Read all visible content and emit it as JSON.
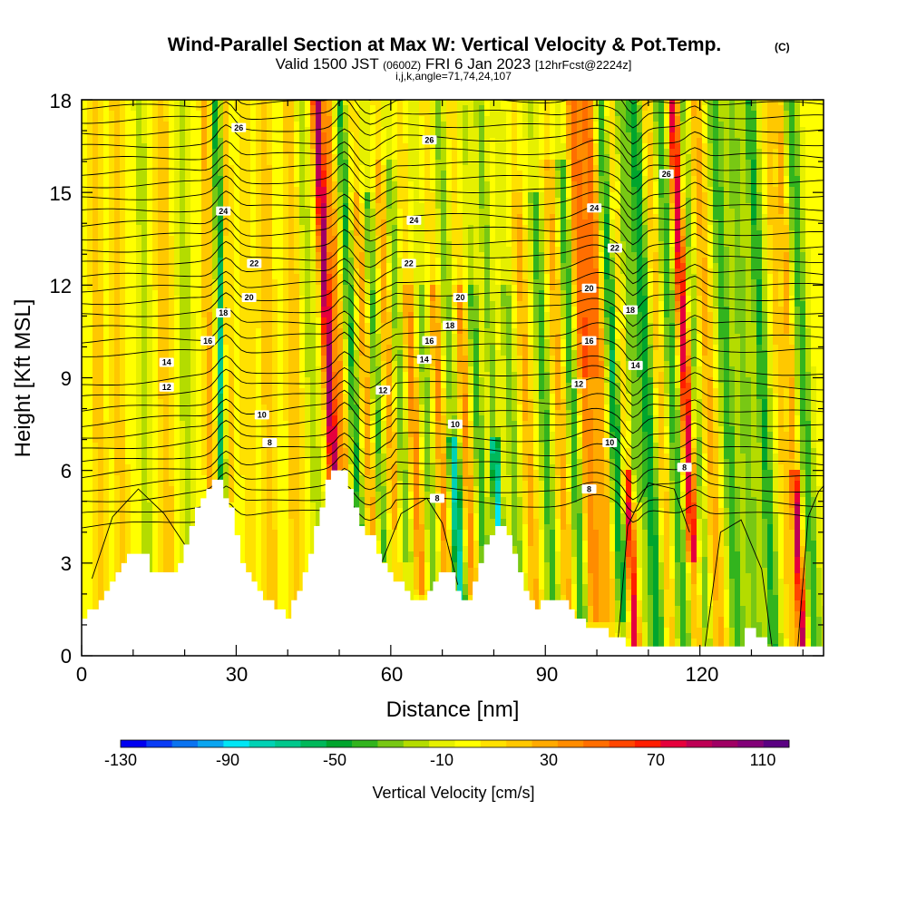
{
  "header": {
    "title": "Wind-Parallel Section at Max W: Vertical Velocity & Pot.Temp.",
    "title_unit": "(C)",
    "valid_prefix": "Valid 1500 JST",
    "valid_utc": "(0600Z)",
    "valid_date": "FRI 6 Jan 2023",
    "forecast": "[12hrFcst@2224z]",
    "indices": "i,j,k,angle=71,74,24,107"
  },
  "chart_data": {
    "type": "heatmap",
    "title": "Wind-Parallel Section at Max W: Vertical Velocity & Pot.Temp.",
    "xlabel": "Distance [nm]",
    "ylabel": "Height [Kft MSL]",
    "xlim": [
      0,
      144
    ],
    "ylim": [
      0,
      18
    ],
    "x_ticks": [
      "0",
      "30",
      "60",
      "90",
      "120"
    ],
    "y_ticks": [
      "0",
      "3",
      "6",
      "9",
      "12",
      "15",
      "18"
    ],
    "colorbar": {
      "label": "Vertical Velocity [cm/s]",
      "tick_labels": [
        "-130",
        "-90",
        "-50",
        "-10",
        "30",
        "70",
        "110"
      ],
      "range": [
        -130,
        120
      ],
      "step": 10,
      "colors": [
        "#0000f0",
        "#0a3cf5",
        "#0a73f0",
        "#0aa5f0",
        "#00e6f5",
        "#00d2b4",
        "#00c88c",
        "#00b85a",
        "#00a52d",
        "#32b41e",
        "#78c814",
        "#b4dc00",
        "#e6f000",
        "#ffff00",
        "#ffe100",
        "#ffc800",
        "#ffaa00",
        "#ff8c00",
        "#ff6e00",
        "#ff4600",
        "#ff1e00",
        "#e6003c",
        "#be0055",
        "#a00064",
        "#820078",
        "#5a0082"
      ]
    },
    "theta_contours": {
      "unit": "C",
      "labels": [
        {
          "value": "26",
          "x": 30.5,
          "y": 17.1
        },
        {
          "value": "26",
          "x": 67.5,
          "y": 16.7
        },
        {
          "value": "26",
          "x": 113.5,
          "y": 15.6
        },
        {
          "value": "24",
          "x": 27.5,
          "y": 14.4
        },
        {
          "value": "24",
          "x": 64.5,
          "y": 14.1
        },
        {
          "value": "24",
          "x": 99.5,
          "y": 14.5
        },
        {
          "value": "22",
          "x": 33.5,
          "y": 12.7
        },
        {
          "value": "22",
          "x": 63.5,
          "y": 12.7
        },
        {
          "value": "22",
          "x": 103.5,
          "y": 13.2
        },
        {
          "value": "20",
          "x": 32.5,
          "y": 11.6
        },
        {
          "value": "20",
          "x": 73.5,
          "y": 11.6
        },
        {
          "value": "20",
          "x": 98.5,
          "y": 11.9
        },
        {
          "value": "18",
          "x": 27.5,
          "y": 11.1
        },
        {
          "value": "18",
          "x": 71.5,
          "y": 10.7
        },
        {
          "value": "18",
          "x": 106.5,
          "y": 11.2
        },
        {
          "value": "16",
          "x": 24.5,
          "y": 10.2
        },
        {
          "value": "16",
          "x": 67.5,
          "y": 10.2
        },
        {
          "value": "16",
          "x": 98.5,
          "y": 10.2
        },
        {
          "value": "14",
          "x": 16.5,
          "y": 9.5
        },
        {
          "value": "14",
          "x": 66.5,
          "y": 9.6
        },
        {
          "value": "14",
          "x": 107.5,
          "y": 9.4
        },
        {
          "value": "12",
          "x": 16.5,
          "y": 8.7
        },
        {
          "value": "12",
          "x": 58.5,
          "y": 8.6
        },
        {
          "value": "12",
          "x": 96.5,
          "y": 8.8
        },
        {
          "value": "10",
          "x": 35,
          "y": 7.8
        },
        {
          "value": "10",
          "x": 72.5,
          "y": 7.5
        },
        {
          "value": "10",
          "x": 102.5,
          "y": 6.9
        },
        {
          "value": "8",
          "x": 36.5,
          "y": 6.9
        },
        {
          "value": "8",
          "x": 69,
          "y": 5.1
        },
        {
          "value": "8",
          "x": 98.5,
          "y": 5.4
        },
        {
          "value": "8",
          "x": 117,
          "y": 6.1
        }
      ]
    }
  }
}
